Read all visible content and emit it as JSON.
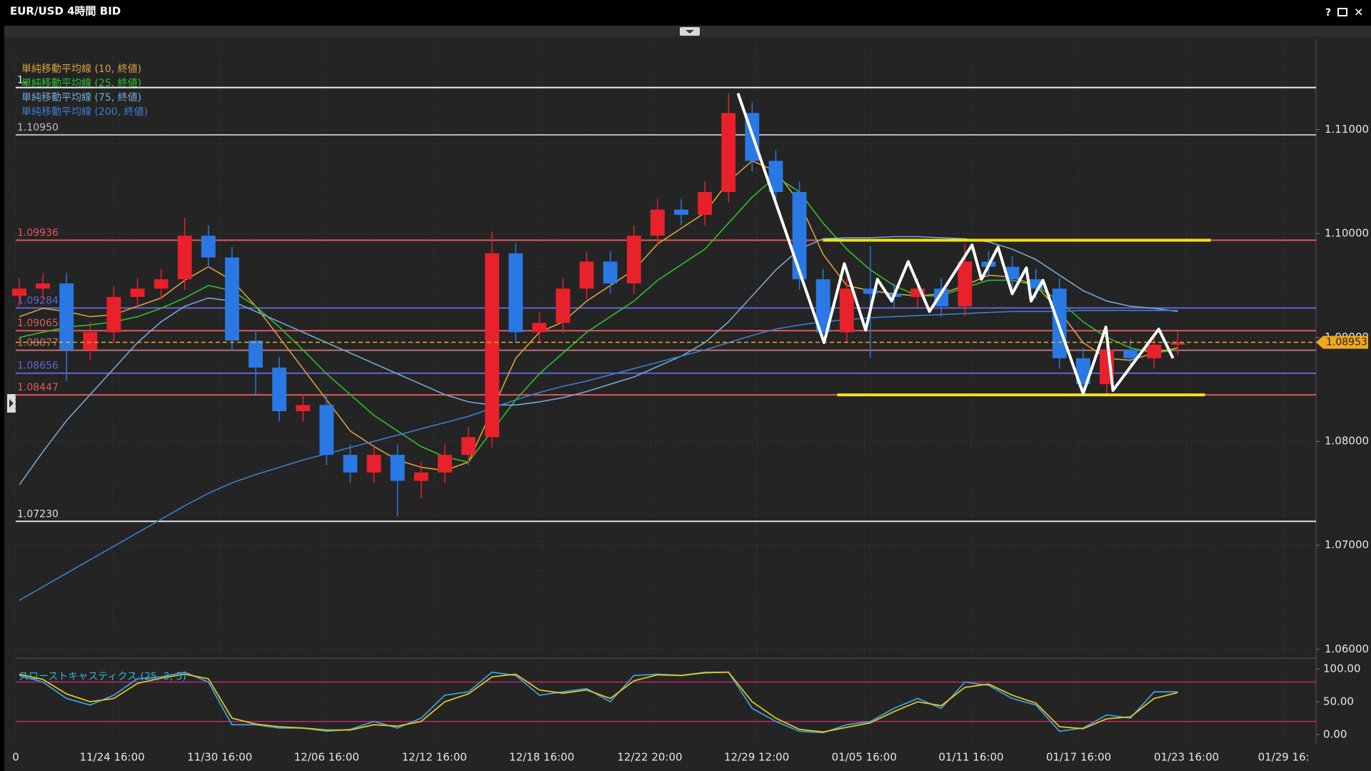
{
  "window": {
    "title": "EUR/USD 4時間 BID"
  },
  "chart_data": {
    "type": "candlestick",
    "ylim": [
      1.0594,
      1.1187
    ],
    "yticks": [
      {
        "value": 1.06,
        "label": "1.06000"
      },
      {
        "value": 1.07,
        "label": "1.07000"
      },
      {
        "value": 1.08,
        "label": "1.08000"
      },
      {
        "value": 1.09,
        "label": "1.09000"
      },
      {
        "value": 1.1,
        "label": "1.10000"
      },
      {
        "value": 1.11,
        "label": "1.11000"
      }
    ],
    "xlim": [
      -0.15,
      54.85
    ],
    "xticks": [
      {
        "value": -0.15,
        "label": "0"
      },
      {
        "value": 3.93,
        "label": "11/24 16:00"
      },
      {
        "value": 8.48,
        "label": "11/30 16:00"
      },
      {
        "value": 13.0,
        "label": "12/06 16:00"
      },
      {
        "value": 17.56,
        "label": "12/12 16:00"
      },
      {
        "value": 22.1,
        "label": "12/18 16:00"
      },
      {
        "value": 26.67,
        "label": "12/22 20:00"
      },
      {
        "value": 31.19,
        "label": "12/29 12:00"
      },
      {
        "value": 35.74,
        "label": "01/05 16:00"
      },
      {
        "value": 40.26,
        "label": "01/11 16:00"
      },
      {
        "value": 44.81,
        "label": "01/17 16:00"
      },
      {
        "value": 49.37,
        "label": "01/23 16:00"
      },
      {
        "value": 53.48,
        "label": "01/29 16:"
      }
    ],
    "grid": true,
    "candles": {
      "up_color": "#e8212b",
      "down_color": "#2a78e4",
      "open": [
        1.094,
        1.0947,
        1.0952,
        1.0888,
        1.0905,
        1.0939,
        1.0947,
        1.0956,
        1.0998,
        1.0977,
        1.0897,
        1.0871,
        1.0829,
        1.0835,
        1.0787,
        1.077,
        1.0787,
        1.0762,
        1.077,
        1.0787,
        1.0804,
        1.0981,
        1.0905,
        1.0914,
        1.0947,
        1.0973,
        1.0952,
        1.0998,
        1.1023,
        1.1018,
        1.104,
        1.1116,
        1.107,
        1.104,
        1.0956,
        1.0905,
        1.0947,
        1.0942,
        1.0939,
        1.0947,
        1.093,
        1.0973,
        1.0968,
        1.0956,
        1.0947,
        1.088,
        1.0855,
        1.0888,
        1.088,
        1.0893
      ],
      "high": [
        1.0957,
        1.0962,
        1.0962,
        1.0915,
        1.0949,
        1.0957,
        1.0966,
        1.1015,
        1.1008,
        1.0987,
        1.0907,
        1.0881,
        1.0845,
        1.0845,
        1.0797,
        1.0797,
        1.0797,
        1.078,
        1.0797,
        1.0814,
        1.1002,
        1.0991,
        1.0924,
        1.0957,
        1.0983,
        1.0983,
        1.1008,
        1.1033,
        1.1033,
        1.105,
        1.1135,
        1.1126,
        1.108,
        1.105,
        1.0966,
        1.0957,
        1.0988,
        1.0952,
        1.0957,
        1.0957,
        1.099,
        1.0983,
        1.0978,
        1.0966,
        1.0957,
        1.089,
        1.0898,
        1.0898,
        1.0903,
        1.0905
      ],
      "low": [
        1.093,
        1.0937,
        1.0858,
        1.0878,
        1.0895,
        1.0929,
        1.0937,
        1.0946,
        1.0967,
        1.0887,
        1.0845,
        1.0819,
        1.0819,
        1.0777,
        1.076,
        1.076,
        1.0728,
        1.0745,
        1.076,
        1.0777,
        1.0794,
        1.0895,
        1.0895,
        1.0904,
        1.0937,
        1.0942,
        1.0942,
        1.0988,
        1.1008,
        1.1008,
        1.103,
        1.106,
        1.103,
        1.0946,
        1.0895,
        1.0895,
        1.088,
        1.0929,
        1.0929,
        1.092,
        1.092,
        1.0958,
        1.0946,
        1.0937,
        1.087,
        1.0845,
        1.0845,
        1.087,
        1.087,
        1.0883
      ],
      "close": [
        1.0947,
        1.0952,
        1.0888,
        1.0905,
        1.0939,
        1.0947,
        1.0956,
        1.0998,
        1.0977,
        1.0897,
        1.0871,
        1.0829,
        1.0835,
        1.0787,
        1.077,
        1.0787,
        1.0762,
        1.077,
        1.0787,
        1.0804,
        1.0981,
        1.0905,
        1.0914,
        1.0947,
        1.0973,
        1.0952,
        1.0998,
        1.1023,
        1.1018,
        1.104,
        1.1116,
        1.107,
        1.104,
        1.0956,
        1.0905,
        1.0947,
        1.0942,
        1.0939,
        1.0947,
        1.093,
        1.0973,
        1.0968,
        1.0956,
        1.0947,
        1.088,
        1.0855,
        1.0888,
        1.088,
        1.0893,
        1.0895
      ]
    },
    "series": [
      {
        "name": "単純移動平均線 (10, 終値)",
        "color": "#d9a23a",
        "values": [
          1.092,
          1.0928,
          1.0925,
          1.092,
          1.0922,
          1.093,
          1.0938,
          1.0955,
          1.0968,
          1.0955,
          1.093,
          1.09,
          1.087,
          1.084,
          1.081,
          1.0795,
          1.0782,
          1.0775,
          1.0772,
          1.078,
          1.083,
          1.088,
          1.0905,
          1.0915,
          1.0935,
          1.095,
          1.0965,
          1.099,
          1.1005,
          1.102,
          1.105,
          1.107,
          1.106,
          1.103,
          1.098,
          1.095,
          1.0945,
          1.0942,
          1.094,
          1.0942,
          1.095,
          1.096,
          1.0958,
          1.095,
          1.0925,
          1.0895,
          1.088,
          1.0878,
          1.0885,
          1.089
        ]
      },
      {
        "name": "単純移動平均線 (25, 終値)",
        "color": "#2fbf2f",
        "values": [
          1.09,
          1.0905,
          1.091,
          1.0912,
          1.0915,
          1.092,
          1.0928,
          1.0938,
          1.095,
          1.0945,
          1.093,
          1.091,
          1.0888,
          1.0865,
          1.0845,
          1.0825,
          1.081,
          1.0795,
          1.0785,
          1.078,
          1.081,
          1.084,
          1.0865,
          1.0885,
          1.0905,
          1.092,
          1.0935,
          1.0955,
          1.097,
          1.0985,
          1.101,
          1.1035,
          1.1055,
          1.104,
          1.101,
          1.0985,
          1.0965,
          1.095,
          1.094,
          1.094,
          1.0948,
          1.0955,
          1.0955,
          1.095,
          1.0935,
          1.0915,
          1.09,
          1.089,
          1.0885,
          1.0888
        ]
      },
      {
        "name": "単純移動平均線 (75, 終値)",
        "color": "#72a9d6",
        "values": [
          1.0758,
          1.079,
          1.082,
          1.0845,
          1.087,
          1.0895,
          1.0915,
          1.093,
          1.0938,
          1.0935,
          1.0925,
          1.0915,
          1.0905,
          1.0895,
          1.0885,
          1.0875,
          1.0865,
          1.0855,
          1.0845,
          1.0838,
          1.0835,
          1.0835,
          1.0838,
          1.0842,
          1.0848,
          1.0855,
          1.0862,
          1.0872,
          1.0882,
          1.0895,
          1.0915,
          1.094,
          1.0965,
          1.0985,
          1.0995,
          1.0996,
          1.0996,
          1.0997,
          1.0997,
          1.0996,
          1.0995,
          1.0992,
          1.0985,
          1.0975,
          1.096,
          1.0945,
          1.0935,
          1.093,
          1.0928,
          1.0925
        ]
      },
      {
        "name": "単純移動平均線 (200, 終値)",
        "color": "#3a7fcf",
        "values": [
          1.0647,
          1.066,
          1.0673,
          1.0686,
          1.0699,
          1.0712,
          1.0725,
          1.0738,
          1.075,
          1.076,
          1.0768,
          1.0775,
          1.0782,
          1.0788,
          1.0794,
          1.08,
          1.0806,
          1.0812,
          1.0818,
          1.0824,
          1.0832,
          1.084,
          1.0847,
          1.0853,
          1.0858,
          1.0864,
          1.087,
          1.0876,
          1.0882,
          1.0888,
          1.0895,
          1.0902,
          1.0908,
          1.0912,
          1.0915,
          1.0917,
          1.0919,
          1.092,
          1.0921,
          1.0922,
          1.0923,
          1.0924,
          1.0925,
          1.0925,
          1.0925,
          1.0926,
          1.0926,
          1.0926,
          1.0926,
          1.0926
        ]
      }
    ],
    "levels": [
      {
        "value": 1.11405,
        "label": "1.",
        "color": "#f0f0f0"
      },
      {
        "value": 1.1095,
        "label": "1.10950",
        "color": "#bdbdbd"
      },
      {
        "value": 1.09936,
        "color": "#e05a5a"
      },
      {
        "value": 1.09284,
        "color": "#6464d0"
      },
      {
        "value": 1.09065,
        "color": "#e05a5a"
      },
      {
        "value": 1.08877,
        "color": "#c07070"
      },
      {
        "value": 1.08656,
        "color": "#6464d0"
      },
      {
        "value": 1.08447,
        "color": "#e05a5a"
      },
      {
        "value": 1.0723,
        "label": "1.07230",
        "color": "#e0e0e0"
      }
    ],
    "current_price": {
      "value": 1.08953,
      "color": "#f0a81c"
    },
    "yellow_lines": [
      {
        "x": [
          34.0,
          50.4
        ],
        "y": 1.09936,
        "color": "#f2e21a"
      },
      {
        "x": [
          34.6,
          50.15
        ],
        "y": 1.08447,
        "color": "#f2e21a"
      }
    ],
    "zigzag": {
      "color": "#ffffff",
      "x": [
        30.4,
        34.04,
        34.9,
        35.8,
        36.3,
        36.9,
        37.6,
        38.5,
        40.3,
        40.7,
        41.4,
        42.0,
        42.6,
        42.8,
        43.3,
        45.0,
        45.96,
        46.26,
        48.2,
        48.8
      ],
      "y": [
        1.1135,
        1.0895,
        1.0971,
        1.0907,
        1.0956,
        1.0935,
        1.0973,
        1.0925,
        1.0989,
        1.0956,
        1.0987,
        1.0942,
        1.0967,
        1.0935,
        1.0955,
        1.0846,
        1.091,
        1.0849,
        1.0908,
        1.088
      ]
    },
    "stochastic": {
      "name": "スローストキャスティクス (25, 3, 3)",
      "ylim": [
        -15.2,
        110.9
      ],
      "yticks": [
        {
          "value": 0,
          "label": "0.00"
        },
        {
          "value": 50,
          "label": "50.00"
        },
        {
          "value": 100,
          "label": "100.00"
        }
      ],
      "levels": [
        20,
        80
      ],
      "series": [
        {
          "color": "#3b9fe0",
          "values": [
            90,
            80,
            55,
            45,
            60,
            85,
            88,
            95,
            80,
            15,
            15,
            10,
            10,
            5,
            8,
            20,
            10,
            25,
            60,
            65,
            95,
            90,
            60,
            65,
            70,
            50,
            90,
            92,
            90,
            95,
            95,
            40,
            20,
            5,
            3,
            15,
            20,
            40,
            55,
            40,
            80,
            75,
            55,
            45,
            5,
            10,
            30,
            25,
            65,
            65
          ]
        },
        {
          "color": "#e2c41e",
          "values": [
            92,
            84,
            62,
            50,
            55,
            78,
            86,
            92,
            85,
            25,
            16,
            12,
            10,
            7,
            7,
            15,
            13,
            20,
            50,
            62,
            88,
            92,
            68,
            63,
            68,
            55,
            82,
            91,
            90,
            94,
            95,
            50,
            25,
            8,
            4,
            11,
            18,
            35,
            50,
            44,
            72,
            77,
            60,
            48,
            12,
            9,
            24,
            27,
            55,
            64
          ]
        }
      ]
    }
  }
}
